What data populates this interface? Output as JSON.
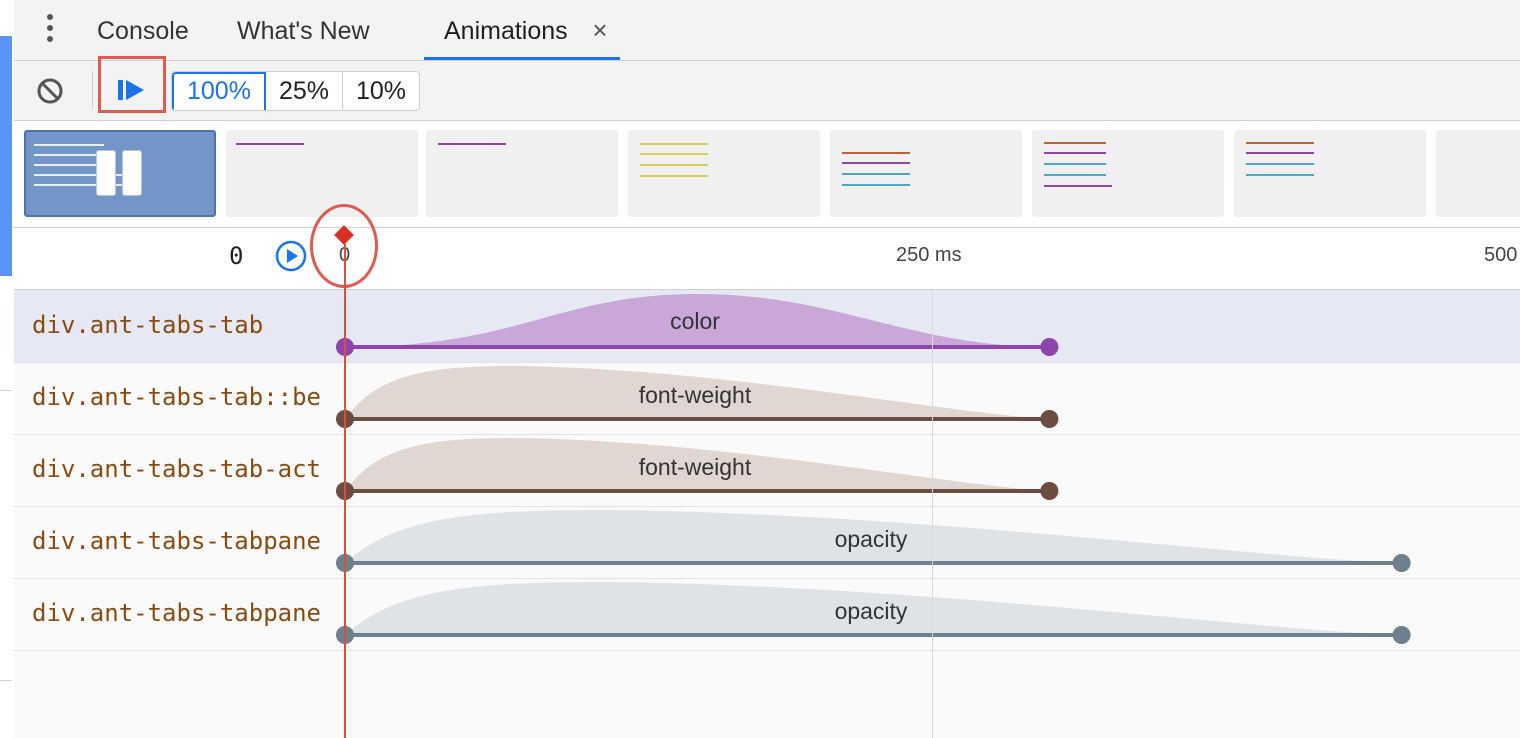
{
  "tabs": {
    "items": [
      {
        "label": "Console"
      },
      {
        "label": "What's New"
      },
      {
        "label": "Animations"
      }
    ],
    "close_glyph": "×"
  },
  "toolbar": {
    "clear_icon": "block-icon",
    "play_icon": "play-icon",
    "speeds": [
      "100%",
      "25%",
      "10%"
    ],
    "active_speed": "100%"
  },
  "timeline": {
    "start_label": "0",
    "ticks": [
      "0",
      "250 ms",
      "500"
    ]
  },
  "rows": [
    {
      "label": "div.ant-tabs-tab",
      "property": "color",
      "color": "#8e44ad",
      "fill": "#c9a8d9",
      "end_ms": 300
    },
    {
      "label": "div.ant-tabs-tab::be",
      "property": "font-weight",
      "color": "#6d4c41",
      "fill": "#e0d6d2",
      "end_ms": 300
    },
    {
      "label": "div.ant-tabs-tab-act",
      "property": "font-weight",
      "color": "#6d4c41",
      "fill": "#e0d6d2",
      "end_ms": 300
    },
    {
      "label": "div.ant-tabs-tabpane",
      "property": "opacity",
      "color": "#6e7f8d",
      "fill": "#dfe3e6",
      "end_ms": 450
    },
    {
      "label": "div.ant-tabs-tabpane",
      "property": "opacity",
      "color": "#6e7f8d",
      "fill": "#dfe3e6",
      "end_ms": 450
    }
  ],
  "colors": {
    "accent": "#1a73e8",
    "highlight": "#e05a4f",
    "playhead": "#d4513c"
  }
}
